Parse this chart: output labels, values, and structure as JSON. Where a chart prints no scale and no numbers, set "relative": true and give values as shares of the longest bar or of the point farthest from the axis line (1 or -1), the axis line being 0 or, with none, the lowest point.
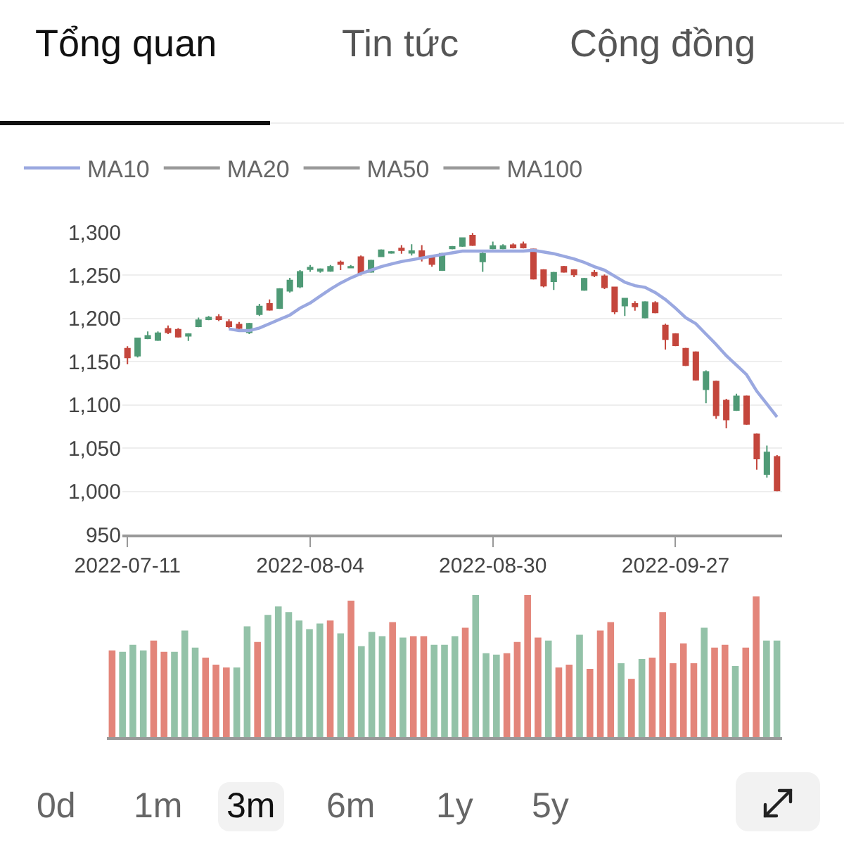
{
  "chart_data": [
    {
      "type": "candlestick",
      "annotations": [
        "Tổng quan",
        "Tin tức",
        "Cộng đồng"
      ],
      "categories": [
        "2022-07-11",
        null,
        null,
        null,
        null,
        null,
        null,
        null,
        null,
        null,
        null,
        null,
        null,
        null,
        null,
        null,
        null,
        null,
        "2022-08-04",
        null,
        null,
        null,
        null,
        null,
        null,
        null,
        null,
        null,
        null,
        null,
        null,
        null,
        null,
        null,
        null,
        null,
        "2022-08-30",
        null,
        null,
        null,
        null,
        null,
        null,
        null,
        null,
        null,
        null,
        null,
        null,
        null,
        null,
        null,
        null,
        null,
        "2022-09-27",
        null,
        null,
        null,
        null,
        null,
        null,
        null,
        null,
        null,
        null
      ],
      "ohlc": [
        [
          1165,
          1168,
          1147,
          1155
        ],
        [
          1157,
          1178,
          1155,
          1177
        ],
        [
          1177,
          1185,
          1176,
          1180
        ],
        [
          1175,
          1185,
          1174,
          1183
        ],
        [
          1188,
          1192,
          1182,
          1184
        ],
        [
          1187,
          1189,
          1178,
          1179
        ],
        [
          1180,
          1183,
          1174,
          1182
        ],
        [
          1191,
          1201,
          1190,
          1198
        ],
        [
          1199,
          1203,
          1198,
          1201
        ],
        [
          1202,
          1205,
          1197,
          1199
        ],
        [
          1196,
          1199,
          1189,
          1191
        ],
        [
          1193,
          1196,
          1187,
          1189
        ],
        [
          1184,
          1195,
          1182,
          1194
        ],
        [
          1205,
          1217,
          1203,
          1214
        ],
        [
          1217,
          1222,
          1209,
          1210
        ],
        [
          1212,
          1235,
          1211,
          1234
        ],
        [
          1232,
          1247,
          1230,
          1244
        ],
        [
          1237,
          1256,
          1235,
          1254
        ],
        [
          1257,
          1262,
          1254,
          1259
        ],
        [
          1255,
          1258,
          1253,
          1257
        ],
        [
          1255,
          1262,
          1254,
          1260
        ],
        [
          1265,
          1267,
          1256,
          1263
        ],
        [
          1259,
          1262,
          1258,
          1260
        ],
        [
          1271,
          1273,
          1250,
          1252
        ],
        [
          1254,
          1268,
          1253,
          1267
        ],
        [
          1272,
          1280,
          1271,
          1279
        ],
        [
          1276,
          1278,
          1275,
          1277
        ],
        [
          1281,
          1285,
          1275,
          1279
        ],
        [
          1276,
          1286,
          1273,
          1278
        ],
        [
          1278,
          1285,
          1266,
          1271
        ],
        [
          1271,
          1273,
          1260,
          1263
        ],
        [
          1256,
          1276,
          1255,
          1275
        ],
        [
          1281,
          1284,
          1280,
          1283
        ],
        [
          1284,
          1294,
          1283,
          1293
        ],
        [
          1296,
          1299,
          1284,
          1285
        ],
        [
          1266,
          1277,
          1254,
          1275
        ],
        [
          1281,
          1289,
          1280,
          1284
        ],
        [
          1281,
          1286,
          1280,
          1284
        ],
        [
          1285,
          1287,
          1281,
          1282
        ],
        [
          1286,
          1289,
          1281,
          1282
        ],
        [
          1280,
          1281,
          1245,
          1246
        ],
        [
          1256,
          1257,
          1236,
          1238
        ],
        [
          1243,
          1254,
          1233,
          1253
        ],
        [
          1260,
          1261,
          1253,
          1254
        ],
        [
          1256,
          1257,
          1248,
          1251
        ],
        [
          1233,
          1247,
          1232,
          1246
        ],
        [
          1253,
          1256,
          1248,
          1250
        ],
        [
          1249,
          1251,
          1234,
          1236
        ],
        [
          1236,
          1237,
          1205,
          1208
        ],
        [
          1215,
          1224,
          1203,
          1223
        ],
        [
          1217,
          1220,
          1209,
          1214
        ],
        [
          1201,
          1220,
          1200,
          1219
        ],
        [
          1218,
          1220,
          1206,
          1207
        ],
        [
          1192,
          1194,
          1164,
          1176
        ],
        [
          1182,
          1183,
          1168,
          1169
        ],
        [
          1165,
          1166,
          1145,
          1146
        ],
        [
          1161,
          1162,
          1128,
          1129
        ],
        [
          1118,
          1140,
          1102,
          1138
        ],
        [
          1127,
          1128,
          1084,
          1088
        ],
        [
          1105,
          1107,
          1073,
          1083
        ],
        [
          1094,
          1113,
          1093,
          1110
        ],
        [
          1110,
          1111,
          1077,
          1078
        ],
        [
          1066,
          1067,
          1025,
          1038
        ],
        [
          1020,
          1053,
          1016,
          1045
        ],
        [
          1040,
          1042,
          1000,
          1001
        ]
      ],
      "colors": [
        "#c4463c",
        "#4f9a76",
        "#4f9a76",
        "#4f9a76",
        "#c4463c",
        "#c4463c",
        "#4f9a76",
        "#4f9a76",
        "#4f9a76",
        "#c4463c",
        "#c4463c",
        "#c4463c",
        "#4f9a76",
        "#4f9a76",
        "#c4463c",
        "#4f9a76",
        "#4f9a76",
        "#4f9a76",
        "#4f9a76",
        "#4f9a76",
        "#4f9a76",
        "#c4463c",
        "#4f9a76",
        "#c4463c",
        "#4f9a76",
        "#4f9a76",
        "#4f9a76",
        "#c4463c",
        "#4f9a76",
        "#c4463c",
        "#c4463c",
        "#4f9a76",
        "#4f9a76",
        "#4f9a76",
        "#c4463c",
        "#4f9a76",
        "#4f9a76",
        "#4f9a76",
        "#c4463c",
        "#c4463c",
        "#c4463c",
        "#c4463c",
        "#4f9a76",
        "#c4463c",
        "#c4463c",
        "#4f9a76",
        "#c4463c",
        "#c4463c",
        "#c4463c",
        "#4f9a76",
        "#c4463c",
        "#4f9a76",
        "#c4463c",
        "#c4463c",
        "#c4463c",
        "#c4463c",
        "#c4463c",
        "#4f9a76",
        "#c4463c",
        "#c4463c",
        "#4f9a76",
        "#c4463c",
        "#c4463c",
        "#4f9a76",
        "#c4463c"
      ],
      "series": [
        {
          "name": "MA10",
          "type": "line",
          "color": "#9aa8e0",
          "values": [
            null,
            null,
            null,
            null,
            null,
            null,
            null,
            null,
            null,
            null,
            1188,
            1186,
            1186,
            1189,
            1194,
            1199,
            1204,
            1212,
            1218,
            1226,
            1234,
            1241,
            1247,
            1252,
            1256,
            1260,
            1263,
            1266,
            1268,
            1270,
            1272,
            1274,
            1276,
            1278,
            1278,
            1278,
            1278,
            1278,
            1278,
            1278,
            1279,
            1277,
            1275,
            1272,
            1269,
            1265,
            1260,
            1256,
            1249,
            1242,
            1238,
            1236,
            1230,
            1222,
            1212,
            1201,
            1194,
            1182,
            1170,
            1157,
            1146,
            1135,
            1116,
            1101,
            1086
          ]
        },
        {
          "name": "MA20",
          "type": "line",
          "color": "#999999",
          "values": [
            null,
            null,
            null,
            null,
            null,
            null,
            null,
            null,
            null,
            null,
            null,
            null,
            null,
            null,
            null,
            null,
            null,
            null,
            null,
            null,
            null,
            null,
            null,
            null,
            null,
            null,
            null,
            null,
            null,
            null,
            null,
            null,
            null,
            null,
            null,
            null,
            null,
            null,
            null,
            null,
            null,
            null,
            null,
            null,
            null,
            null,
            null,
            null,
            null,
            null,
            null,
            null,
            null,
            null,
            null,
            null,
            null,
            null,
            null,
            null,
            null,
            null,
            null,
            null,
            null
          ]
        },
        {
          "name": "MA50",
          "type": "line",
          "color": "#999999",
          "values": [
            null,
            null,
            null,
            null,
            null,
            null,
            null,
            null,
            null,
            null,
            null,
            null,
            null,
            null,
            null,
            null,
            null,
            null,
            null,
            null,
            null,
            null,
            null,
            null,
            null,
            null,
            null,
            null,
            null,
            null,
            null,
            null,
            null,
            null,
            null,
            null,
            null,
            null,
            null,
            null,
            null,
            null,
            null,
            null,
            null,
            null,
            null,
            null,
            null,
            null,
            null,
            null,
            null,
            null,
            null,
            null,
            null,
            null,
            null,
            null,
            null,
            null,
            null,
            null,
            null
          ]
        },
        {
          "name": "MA100",
          "type": "line",
          "color": "#999999",
          "values": [
            null,
            null,
            null,
            null,
            null,
            null,
            null,
            null,
            null,
            null,
            null,
            null,
            null,
            null,
            null,
            null,
            null,
            null,
            null,
            null,
            null,
            null,
            null,
            null,
            null,
            null,
            null,
            null,
            null,
            null,
            null,
            null,
            null,
            null,
            null,
            null,
            null,
            null,
            null,
            null,
            null,
            null,
            null,
            null,
            null,
            null,
            null,
            null,
            null,
            null,
            null,
            null,
            null,
            null,
            null,
            null,
            null,
            null,
            null,
            null,
            null,
            null,
            null,
            null,
            null
          ]
        }
      ],
      "ylim": [
        950,
        1300
      ],
      "yticks": [
        950,
        {
          "value": 1000,
          "label": "1,000"
        },
        {
          "value": 1050,
          "label": "1,050"
        },
        {
          "value": 1100,
          "label": "1,100"
        },
        {
          "value": 1150,
          "label": "1,150"
        },
        {
          "value": 1200,
          "label": "1,200"
        },
        {
          "value": 1250,
          "label": "1,250"
        },
        {
          "value": 1300,
          "label": "1,300"
        }
      ],
      "grid": "y",
      "legend": "top left"
    },
    {
      "type": "bar",
      "relative": true,
      "annotations": [
        "0d",
        "1m",
        "3m",
        "6m",
        "1y",
        "5y"
      ],
      "categories": [
        null,
        null,
        null,
        null,
        null,
        null,
        null,
        null,
        null,
        null,
        null,
        null,
        null,
        null,
        null,
        null,
        null,
        null,
        null,
        null,
        null,
        null,
        null,
        null,
        null,
        null,
        null,
        null,
        null,
        null,
        null,
        null,
        null,
        null,
        null,
        null,
        null,
        null,
        null,
        null,
        null,
        null,
        null,
        null,
        null,
        null,
        null,
        null,
        null,
        null,
        null,
        null,
        null,
        null,
        null,
        null,
        null,
        null,
        null,
        null,
        null,
        null,
        null,
        null,
        null
      ],
      "values": [
        0.61,
        0.6,
        0.65,
        0.61,
        0.68,
        0.6,
        0.6,
        0.75,
        0.63,
        0.56,
        0.51,
        0.49,
        0.49,
        0.78,
        0.67,
        0.86,
        0.92,
        0.88,
        0.82,
        0.76,
        0.8,
        0.82,
        0.73,
        0.96,
        0.64,
        0.74,
        0.71,
        0.81,
        0.7,
        0.71,
        0.71,
        0.65,
        0.65,
        0.71,
        0.77,
        1,
        0.59,
        0.58,
        0.59,
        0.67,
        1,
        0.7,
        0.68,
        0.49,
        0.51,
        0.72,
        0.48,
        0.75,
        0.81,
        0.52,
        0.41,
        0.55,
        0.56,
        0.88,
        0.52,
        0.66,
        0.52,
        0.77,
        0.63,
        0.65,
        0.5,
        0.63,
        0.99,
        0.68,
        0.68
      ],
      "colors": [
        "#e3857a",
        "#93c2a8",
        "#93c2a8",
        "#93c2a8",
        "#e3857a",
        "#e3857a",
        "#93c2a8",
        "#93c2a8",
        "#93c2a8",
        "#e3857a",
        "#e3857a",
        "#e3857a",
        "#93c2a8",
        "#93c2a8",
        "#e3857a",
        "#93c2a8",
        "#93c2a8",
        "#93c2a8",
        "#93c2a8",
        "#93c2a8",
        "#93c2a8",
        "#e3857a",
        "#93c2a8",
        "#e3857a",
        "#93c2a8",
        "#93c2a8",
        "#93c2a8",
        "#e3857a",
        "#93c2a8",
        "#e3857a",
        "#e3857a",
        "#93c2a8",
        "#93c2a8",
        "#93c2a8",
        "#e3857a",
        "#93c2a8",
        "#93c2a8",
        "#93c2a8",
        "#e3857a",
        "#e3857a",
        "#e3857a",
        "#e3857a",
        "#93c2a8",
        "#e3857a",
        "#e3857a",
        "#93c2a8",
        "#e3857a",
        "#e3857a",
        "#e3857a",
        "#93c2a8",
        "#e3857a",
        "#93c2a8",
        "#e3857a",
        "#e3857a",
        "#e3857a",
        "#e3857a",
        "#e3857a",
        "#93c2a8",
        "#e3857a",
        "#e3857a",
        "#93c2a8",
        "#e3857a",
        "#e3857a",
        "#93c2a8",
        "#93c2a8"
      ]
    }
  ]
}
